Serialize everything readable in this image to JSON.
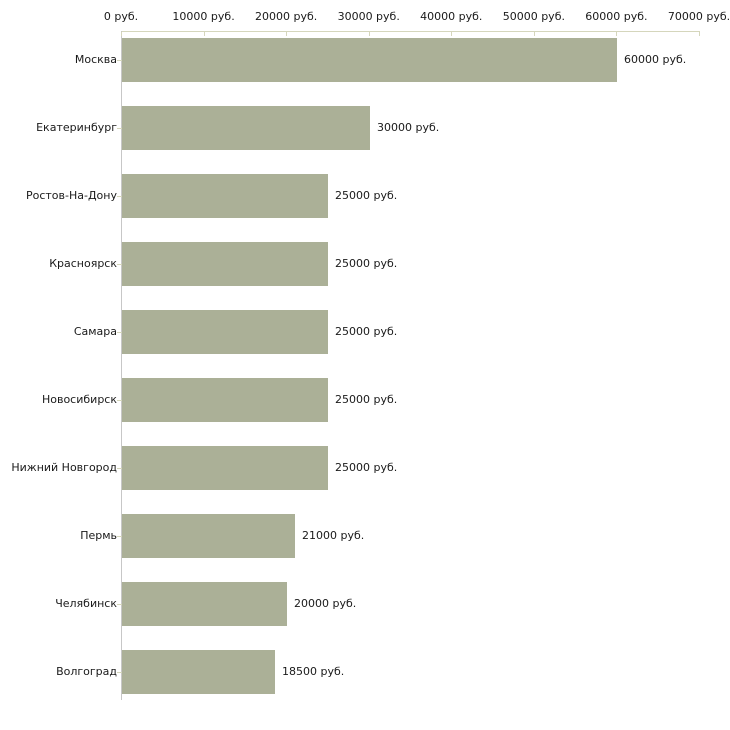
{
  "chart_data": {
    "type": "bar",
    "orientation": "horizontal",
    "title": "",
    "xlabel": "",
    "ylabel": "",
    "categories": [
      "Москва",
      "Екатеринбург",
      "Ростов-На-Дону",
      "Красноярск",
      "Самара",
      "Новосибирск",
      "Нижний Новгород",
      "Пермь",
      "Челябинск",
      "Волгоград"
    ],
    "values": [
      60000,
      30000,
      25000,
      25000,
      25000,
      25000,
      25000,
      21000,
      20000,
      18500
    ],
    "value_labels": [
      "60000 руб.",
      "30000 руб.",
      "25000 руб.",
      "25000 руб.",
      "25000 руб.",
      "25000 руб.",
      "25000 руб.",
      "21000 руб.",
      "20000 руб.",
      "18500 руб."
    ],
    "x_ticks": [
      "0 руб.",
      "10000 руб.",
      "20000 руб.",
      "30000 руб.",
      "40000 руб.",
      "50000 руб.",
      "60000 руб.",
      "70000 руб."
    ],
    "axis": {
      "min": 0,
      "max": 70000,
      "tick_step": 10000,
      "tick_labels_position": "top"
    },
    "grid": false,
    "legend": "none",
    "colors": {
      "bar": "#abb097",
      "axis_line": "#d5d6bc",
      "tick_mark": "#d5d6bc",
      "yaxis_line": "#c7c7c7",
      "text": "#1a1a1a",
      "background": "#ffffff"
    }
  }
}
